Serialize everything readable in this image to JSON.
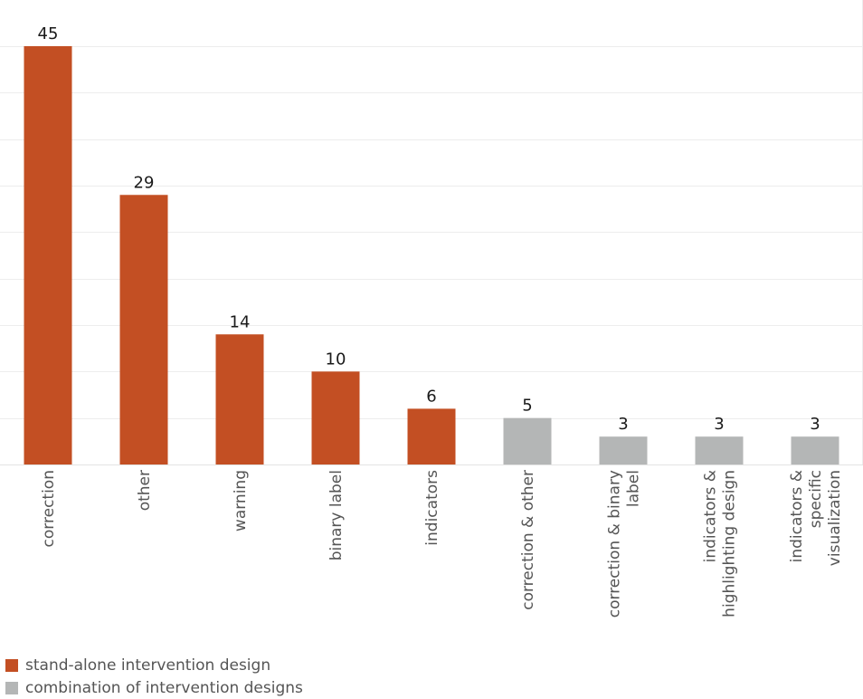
{
  "chart_data": {
    "type": "bar",
    "title": "",
    "xlabel": "",
    "ylabel": "",
    "ylim": [
      0,
      45
    ],
    "grid": true,
    "categories": [
      [
        "correction"
      ],
      [
        "other"
      ],
      [
        "warning"
      ],
      [
        "binary label"
      ],
      [
        "indicators"
      ],
      [
        "correction & other"
      ],
      [
        "correction & binary",
        "label"
      ],
      [
        "indicators &",
        "highlighting design"
      ],
      [
        "indicators &",
        "specific",
        "visualization"
      ]
    ],
    "values": [
      45,
      29,
      14,
      10,
      6,
      5,
      3,
      3,
      3
    ],
    "groups": [
      "standalone",
      "standalone",
      "standalone",
      "standalone",
      "standalone",
      "combination",
      "combination",
      "combination",
      "combination"
    ],
    "legend": {
      "placement": "bottom-left",
      "items": [
        {
          "key": "standalone",
          "label": "stand-alone intervention design",
          "color": "#c34f23"
        },
        {
          "key": "combination",
          "label": "combination of intervention designs",
          "color": "#b4b6b6"
        }
      ]
    }
  }
}
